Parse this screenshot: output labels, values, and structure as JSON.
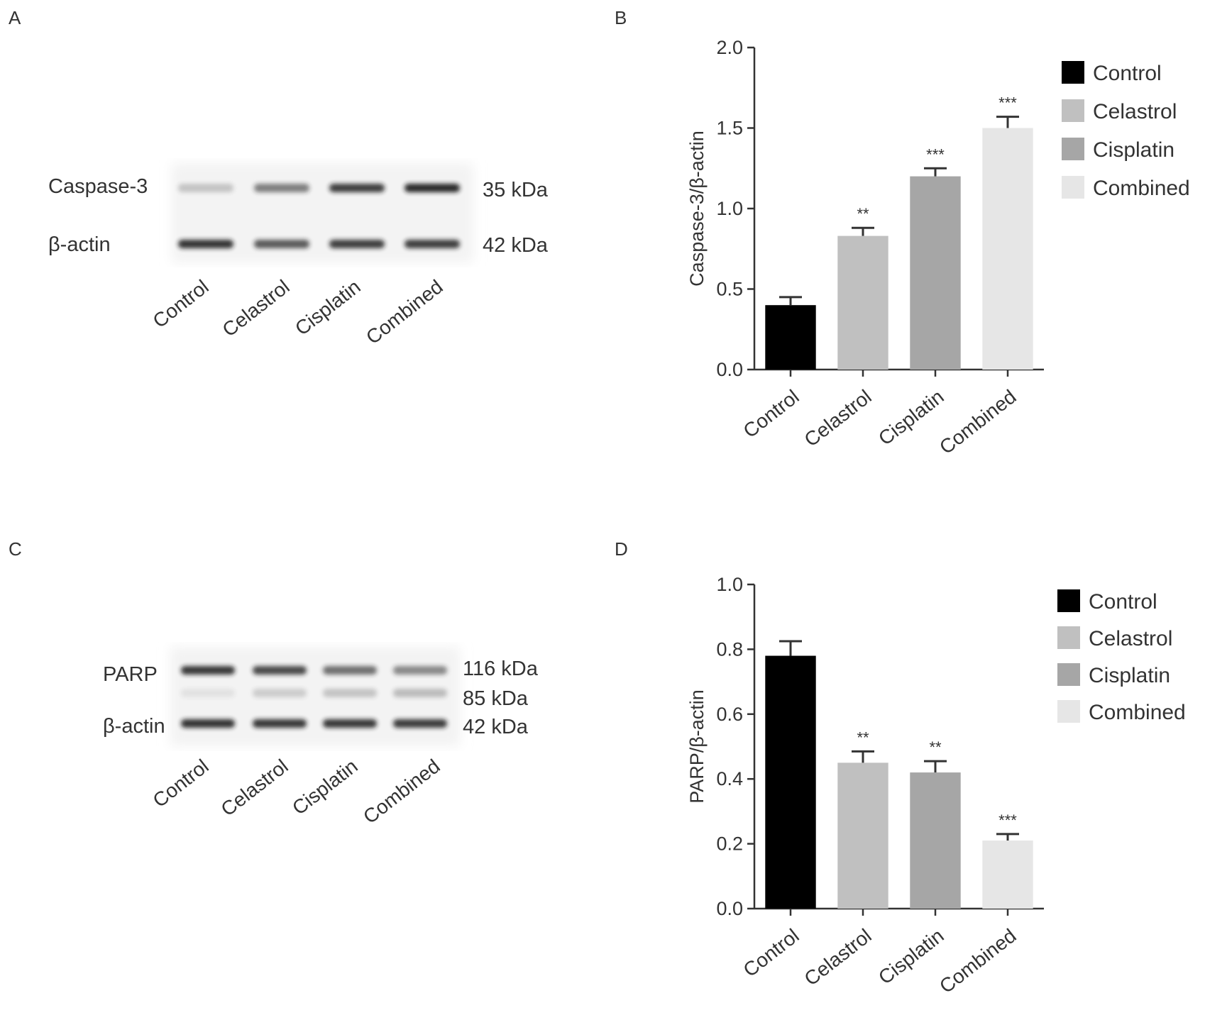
{
  "panels": {
    "A": {
      "letter": "A",
      "bands": [
        {
          "protein": "Caspase-3",
          "mw": "35 kDa",
          "intensity": [
            0.22,
            0.55,
            0.85,
            0.95
          ]
        },
        {
          "protein": "β-actin",
          "mw": "42 kDa",
          "intensity": [
            0.9,
            0.72,
            0.85,
            0.85
          ]
        }
      ],
      "lanes": [
        "Control",
        "Celastrol",
        "Cisplatin",
        "Combined"
      ]
    },
    "B": {
      "letter": "B"
    },
    "C": {
      "letter": "C",
      "bands": [
        {
          "protein": "PARP",
          "mw": "116 kDa",
          "intensity": [
            0.88,
            0.8,
            0.62,
            0.5
          ]
        },
        {
          "protein": "",
          "mw": "85 kDa",
          "intensity": [
            0.08,
            0.18,
            0.22,
            0.26
          ]
        },
        {
          "protein": "β-actin",
          "mw": "42 kDa",
          "intensity": [
            0.9,
            0.88,
            0.88,
            0.86
          ]
        }
      ],
      "lanes": [
        "Control",
        "Celastrol",
        "Cisplatin",
        "Combined"
      ]
    },
    "D": {
      "letter": "D"
    }
  },
  "colors": {
    "Control": "#000000",
    "Celastrol": "#c0c0c0",
    "Cisplatin": "#a6a6a6",
    "Combined": "#e6e6e6",
    "axis": "#333333",
    "band": "#1a1a1a"
  },
  "chart_data": [
    {
      "id": "B",
      "type": "bar",
      "title": "",
      "xlabel": "",
      "ylabel": "Caspase-3/β-actin",
      "ylim": [
        0,
        2.0
      ],
      "yticks": [
        "0.0",
        "0.5",
        "1.0",
        "1.5",
        "2.0"
      ],
      "categories": [
        "Control",
        "Celastrol",
        "Cisplatin",
        "Combined"
      ],
      "values": [
        0.4,
        0.83,
        1.2,
        1.5
      ],
      "errors": [
        0.05,
        0.05,
        0.05,
        0.07
      ],
      "significance": [
        "",
        "**",
        "***",
        "***"
      ],
      "legend": [
        "Control",
        "Celastrol",
        "Cisplatin",
        "Combined"
      ],
      "legend_position": "right",
      "grid": false
    },
    {
      "id": "D",
      "type": "bar",
      "title": "",
      "xlabel": "",
      "ylabel": "PARP/β-actin",
      "ylim": [
        0,
        1.0
      ],
      "yticks": [
        "0.0",
        "0.2",
        "0.4",
        "0.6",
        "0.8",
        "1.0"
      ],
      "categories": [
        "Control",
        "Celastrol",
        "Cisplatin",
        "Combined"
      ],
      "values": [
        0.78,
        0.45,
        0.42,
        0.21
      ],
      "errors": [
        0.045,
        0.035,
        0.035,
        0.02
      ],
      "significance": [
        "",
        "**",
        "**",
        "***"
      ],
      "legend": [
        "Control",
        "Celastrol",
        "Cisplatin",
        "Combined"
      ],
      "legend_position": "right",
      "grid": false
    }
  ]
}
